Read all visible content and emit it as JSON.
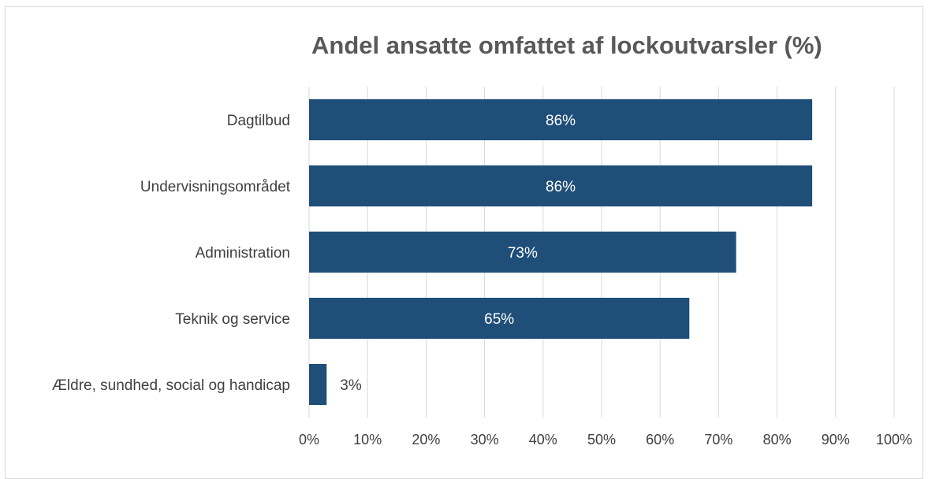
{
  "chart_data": {
    "type": "bar",
    "orientation": "horizontal",
    "title": "Andel ansatte omfattet af lockoutvarsler (%)",
    "categories": [
      "Dagtilbud",
      "Undervisningsområdet",
      "Administration",
      "Teknik og service",
      "Ældre, sundhed, social og handicap"
    ],
    "values": [
      86,
      86,
      73,
      65,
      3
    ],
    "data_labels": [
      "86%",
      "86%",
      "73%",
      "65%",
      "3%"
    ],
    "xlim": [
      0,
      100
    ],
    "x_ticks": [
      "0%",
      "10%",
      "20%",
      "30%",
      "40%",
      "50%",
      "60%",
      "70%",
      "80%",
      "90%",
      "100%"
    ],
    "grid": "vertical",
    "bar_color": "#1f4e79",
    "legend": "none"
  }
}
